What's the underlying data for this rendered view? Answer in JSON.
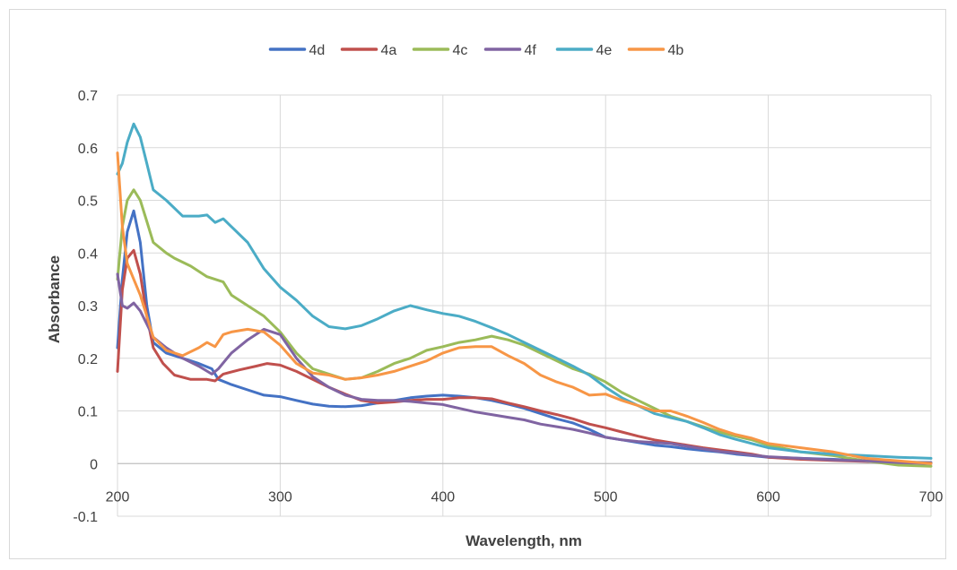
{
  "chart_data": {
    "type": "line",
    "title": "",
    "xlabel": "Wavelength, nm",
    "ylabel": "Absorbance",
    "xlim": [
      200,
      700
    ],
    "ylim": [
      -0.1,
      0.7
    ],
    "x_ticks": [
      200,
      300,
      400,
      500,
      600,
      700
    ],
    "y_ticks": [
      -0.1,
      0,
      0.1,
      0.2,
      0.3,
      0.4,
      0.5,
      0.6,
      0.7
    ],
    "grid": true,
    "legend_position": "top",
    "series": [
      {
        "name": "4d",
        "color": "#4472c4",
        "points": [
          [
            200,
            0.22
          ],
          [
            203,
            0.35
          ],
          [
            206,
            0.44
          ],
          [
            210,
            0.48
          ],
          [
            214,
            0.42
          ],
          [
            218,
            0.3
          ],
          [
            222,
            0.23
          ],
          [
            230,
            0.21
          ],
          [
            240,
            0.2
          ],
          [
            250,
            0.19
          ],
          [
            258,
            0.18
          ],
          [
            262,
            0.16
          ],
          [
            270,
            0.15
          ],
          [
            280,
            0.14
          ],
          [
            290,
            0.13
          ],
          [
            300,
            0.127
          ],
          [
            310,
            0.12
          ],
          [
            320,
            0.113
          ],
          [
            330,
            0.109
          ],
          [
            340,
            0.108
          ],
          [
            350,
            0.11
          ],
          [
            360,
            0.115
          ],
          [
            370,
            0.12
          ],
          [
            380,
            0.125
          ],
          [
            390,
            0.128
          ],
          [
            400,
            0.13
          ],
          [
            410,
            0.128
          ],
          [
            420,
            0.125
          ],
          [
            430,
            0.12
          ],
          [
            440,
            0.113
          ],
          [
            450,
            0.105
          ],
          [
            460,
            0.095
          ],
          [
            470,
            0.085
          ],
          [
            480,
            0.077
          ],
          [
            490,
            0.065
          ],
          [
            500,
            0.05
          ],
          [
            510,
            0.045
          ],
          [
            520,
            0.04
          ],
          [
            530,
            0.035
          ],
          [
            540,
            0.032
          ],
          [
            550,
            0.028
          ],
          [
            560,
            0.025
          ],
          [
            570,
            0.022
          ],
          [
            580,
            0.018
          ],
          [
            590,
            0.015
          ],
          [
            600,
            0.012
          ],
          [
            620,
            0.01
          ],
          [
            640,
            0.008
          ],
          [
            660,
            0.005
          ],
          [
            680,
            0.003
          ],
          [
            700,
            0.002
          ]
        ]
      },
      {
        "name": "4a",
        "color": "#c0504d",
        "points": [
          [
            200,
            0.175
          ],
          [
            203,
            0.33
          ],
          [
            206,
            0.39
          ],
          [
            210,
            0.405
          ],
          [
            214,
            0.36
          ],
          [
            218,
            0.28
          ],
          [
            222,
            0.22
          ],
          [
            228,
            0.19
          ],
          [
            235,
            0.168
          ],
          [
            245,
            0.16
          ],
          [
            255,
            0.16
          ],
          [
            260,
            0.157
          ],
          [
            265,
            0.17
          ],
          [
            275,
            0.178
          ],
          [
            285,
            0.185
          ],
          [
            292,
            0.19
          ],
          [
            300,
            0.187
          ],
          [
            310,
            0.175
          ],
          [
            320,
            0.16
          ],
          [
            330,
            0.145
          ],
          [
            340,
            0.132
          ],
          [
            350,
            0.12
          ],
          [
            360,
            0.115
          ],
          [
            370,
            0.117
          ],
          [
            380,
            0.12
          ],
          [
            390,
            0.122
          ],
          [
            400,
            0.122
          ],
          [
            410,
            0.125
          ],
          [
            420,
            0.125
          ],
          [
            430,
            0.123
          ],
          [
            440,
            0.115
          ],
          [
            450,
            0.108
          ],
          [
            460,
            0.1
          ],
          [
            470,
            0.093
          ],
          [
            480,
            0.085
          ],
          [
            490,
            0.075
          ],
          [
            500,
            0.068
          ],
          [
            510,
            0.06
          ],
          [
            520,
            0.052
          ],
          [
            530,
            0.045
          ],
          [
            540,
            0.04
          ],
          [
            550,
            0.035
          ],
          [
            560,
            0.03
          ],
          [
            570,
            0.026
          ],
          [
            580,
            0.022
          ],
          [
            590,
            0.018
          ],
          [
            600,
            0.012
          ],
          [
            620,
            0.008
          ],
          [
            640,
            0.006
          ],
          [
            660,
            0.004
          ],
          [
            680,
            0.002
          ],
          [
            700,
            0.001
          ]
        ]
      },
      {
        "name": "4c",
        "color": "#9bbb59",
        "points": [
          [
            200,
            0.35
          ],
          [
            203,
            0.45
          ],
          [
            206,
            0.5
          ],
          [
            210,
            0.52
          ],
          [
            214,
            0.5
          ],
          [
            218,
            0.46
          ],
          [
            222,
            0.42
          ],
          [
            230,
            0.4
          ],
          [
            235,
            0.39
          ],
          [
            245,
            0.375
          ],
          [
            255,
            0.355
          ],
          [
            265,
            0.345
          ],
          [
            270,
            0.32
          ],
          [
            280,
            0.3
          ],
          [
            290,
            0.28
          ],
          [
            300,
            0.25
          ],
          [
            310,
            0.21
          ],
          [
            320,
            0.18
          ],
          [
            330,
            0.17
          ],
          [
            340,
            0.16
          ],
          [
            350,
            0.163
          ],
          [
            360,
            0.175
          ],
          [
            370,
            0.19
          ],
          [
            380,
            0.2
          ],
          [
            390,
            0.215
          ],
          [
            400,
            0.222
          ],
          [
            410,
            0.23
          ],
          [
            420,
            0.235
          ],
          [
            430,
            0.242
          ],
          [
            440,
            0.235
          ],
          [
            450,
            0.225
          ],
          [
            460,
            0.21
          ],
          [
            470,
            0.195
          ],
          [
            480,
            0.18
          ],
          [
            490,
            0.17
          ],
          [
            500,
            0.155
          ],
          [
            510,
            0.135
          ],
          [
            520,
            0.12
          ],
          [
            530,
            0.105
          ],
          [
            540,
            0.09
          ],
          [
            550,
            0.08
          ],
          [
            560,
            0.07
          ],
          [
            570,
            0.06
          ],
          [
            580,
            0.052
          ],
          [
            590,
            0.045
          ],
          [
            600,
            0.035
          ],
          [
            620,
            0.022
          ],
          [
            640,
            0.015
          ],
          [
            660,
            0.005
          ],
          [
            680,
            -0.003
          ],
          [
            700,
            -0.005
          ]
        ]
      },
      {
        "name": "4f",
        "color": "#8064a2",
        "points": [
          [
            200,
            0.36
          ],
          [
            203,
            0.3
          ],
          [
            206,
            0.295
          ],
          [
            210,
            0.305
          ],
          [
            214,
            0.29
          ],
          [
            218,
            0.265
          ],
          [
            222,
            0.24
          ],
          [
            230,
            0.22
          ],
          [
            240,
            0.2
          ],
          [
            250,
            0.185
          ],
          [
            258,
            0.17
          ],
          [
            262,
            0.18
          ],
          [
            270,
            0.21
          ],
          [
            280,
            0.235
          ],
          [
            290,
            0.255
          ],
          [
            300,
            0.245
          ],
          [
            310,
            0.2
          ],
          [
            320,
            0.165
          ],
          [
            330,
            0.145
          ],
          [
            340,
            0.13
          ],
          [
            350,
            0.122
          ],
          [
            360,
            0.12
          ],
          [
            370,
            0.12
          ],
          [
            380,
            0.118
          ],
          [
            390,
            0.115
          ],
          [
            400,
            0.112
          ],
          [
            410,
            0.105
          ],
          [
            420,
            0.098
          ],
          [
            430,
            0.093
          ],
          [
            440,
            0.088
          ],
          [
            450,
            0.083
          ],
          [
            460,
            0.075
          ],
          [
            470,
            0.07
          ],
          [
            480,
            0.065
          ],
          [
            490,
            0.058
          ],
          [
            500,
            0.05
          ],
          [
            510,
            0.045
          ],
          [
            520,
            0.042
          ],
          [
            530,
            0.04
          ],
          [
            540,
            0.038
          ],
          [
            550,
            0.033
          ],
          [
            560,
            0.028
          ],
          [
            570,
            0.023
          ],
          [
            580,
            0.02
          ],
          [
            590,
            0.016
          ],
          [
            600,
            0.013
          ],
          [
            620,
            0.01
          ],
          [
            640,
            0.007
          ],
          [
            660,
            0.005
          ],
          [
            680,
            0.002
          ],
          [
            700,
            0.0
          ]
        ]
      },
      {
        "name": "4e",
        "color": "#4bacc6",
        "points": [
          [
            200,
            0.55
          ],
          [
            203,
            0.57
          ],
          [
            206,
            0.61
          ],
          [
            210,
            0.645
          ],
          [
            214,
            0.62
          ],
          [
            218,
            0.57
          ],
          [
            222,
            0.52
          ],
          [
            230,
            0.5
          ],
          [
            240,
            0.47
          ],
          [
            250,
            0.47
          ],
          [
            255,
            0.472
          ],
          [
            260,
            0.458
          ],
          [
            265,
            0.465
          ],
          [
            270,
            0.45
          ],
          [
            280,
            0.42
          ],
          [
            290,
            0.37
          ],
          [
            300,
            0.335
          ],
          [
            310,
            0.31
          ],
          [
            320,
            0.28
          ],
          [
            330,
            0.26
          ],
          [
            340,
            0.256
          ],
          [
            350,
            0.262
          ],
          [
            360,
            0.275
          ],
          [
            370,
            0.29
          ],
          [
            380,
            0.3
          ],
          [
            390,
            0.292
          ],
          [
            400,
            0.285
          ],
          [
            410,
            0.28
          ],
          [
            420,
            0.27
          ],
          [
            430,
            0.258
          ],
          [
            440,
            0.245
          ],
          [
            450,
            0.23
          ],
          [
            460,
            0.215
          ],
          [
            470,
            0.2
          ],
          [
            480,
            0.185
          ],
          [
            490,
            0.168
          ],
          [
            500,
            0.145
          ],
          [
            510,
            0.125
          ],
          [
            520,
            0.11
          ],
          [
            530,
            0.095
          ],
          [
            540,
            0.087
          ],
          [
            550,
            0.08
          ],
          [
            560,
            0.068
          ],
          [
            570,
            0.055
          ],
          [
            580,
            0.046
          ],
          [
            590,
            0.038
          ],
          [
            600,
            0.03
          ],
          [
            620,
            0.022
          ],
          [
            640,
            0.018
          ],
          [
            660,
            0.015
          ],
          [
            680,
            0.012
          ],
          [
            700,
            0.01
          ]
        ]
      },
      {
        "name": "4b",
        "color": "#f79646",
        "points": [
          [
            200,
            0.59
          ],
          [
            203,
            0.45
          ],
          [
            206,
            0.38
          ],
          [
            210,
            0.35
          ],
          [
            214,
            0.32
          ],
          [
            218,
            0.28
          ],
          [
            222,
            0.24
          ],
          [
            230,
            0.215
          ],
          [
            240,
            0.205
          ],
          [
            250,
            0.22
          ],
          [
            255,
            0.23
          ],
          [
            260,
            0.222
          ],
          [
            265,
            0.245
          ],
          [
            270,
            0.25
          ],
          [
            280,
            0.255
          ],
          [
            290,
            0.25
          ],
          [
            300,
            0.225
          ],
          [
            310,
            0.19
          ],
          [
            320,
            0.172
          ],
          [
            330,
            0.168
          ],
          [
            340,
            0.16
          ],
          [
            350,
            0.163
          ],
          [
            360,
            0.168
          ],
          [
            370,
            0.175
          ],
          [
            380,
            0.185
          ],
          [
            390,
            0.195
          ],
          [
            400,
            0.21
          ],
          [
            410,
            0.22
          ],
          [
            420,
            0.222
          ],
          [
            430,
            0.222
          ],
          [
            440,
            0.205
          ],
          [
            450,
            0.19
          ],
          [
            460,
            0.168
          ],
          [
            470,
            0.155
          ],
          [
            480,
            0.145
          ],
          [
            490,
            0.13
          ],
          [
            500,
            0.132
          ],
          [
            510,
            0.12
          ],
          [
            520,
            0.11
          ],
          [
            530,
            0.1
          ],
          [
            540,
            0.1
          ],
          [
            550,
            0.09
          ],
          [
            560,
            0.078
          ],
          [
            570,
            0.065
          ],
          [
            580,
            0.055
          ],
          [
            590,
            0.048
          ],
          [
            600,
            0.038
          ],
          [
            620,
            0.03
          ],
          [
            640,
            0.022
          ],
          [
            660,
            0.01
          ],
          [
            680,
            0.005
          ],
          [
            700,
            0.0
          ]
        ]
      }
    ]
  }
}
